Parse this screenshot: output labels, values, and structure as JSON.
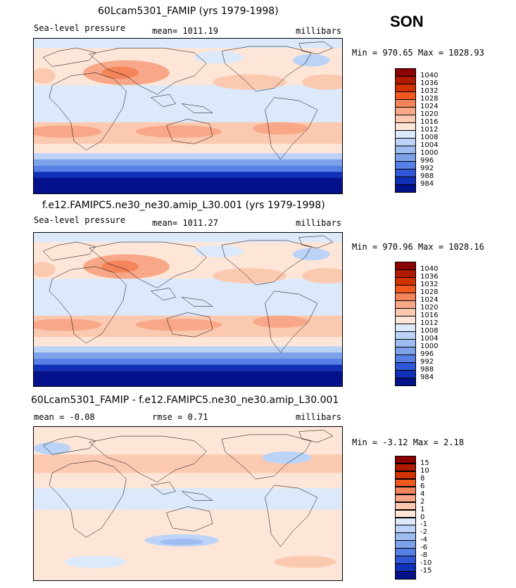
{
  "season": "SON",
  "chart_data": [
    {
      "type": "heatmap",
      "title": "60Lcam5301_FAMIP (yrs 1979-1998)",
      "left_label": "Sea-level pressure",
      "center_label": "mean= 1011.19",
      "right_label": "millibars",
      "stats": "Min = 970.65 Max = 1028.93",
      "min": 970.65,
      "max": 1028.93,
      "mean": 1011.19,
      "levels": [
        "1040",
        "1036",
        "1032",
        "1028",
        "1024",
        "1020",
        "1016",
        "1012",
        "1008",
        "1004",
        "1000",
        "996",
        "992",
        "988",
        "984"
      ],
      "colors": [
        "#8b0000",
        "#b01a00",
        "#d23200",
        "#f05a1e",
        "#f4845a",
        "#f8a888",
        "#fbc9b0",
        "#fde6d8",
        "#dce9fb",
        "#bcd3f7",
        "#9dbcf0",
        "#7da2ea",
        "#5680e6",
        "#2f57d6",
        "#1030b8",
        "#03118a"
      ]
    },
    {
      "type": "heatmap",
      "title": "f.e12.FAMIPC5.ne30_ne30.amip_L30.001 (yrs 1979-1998)",
      "left_label": "Sea-level pressure",
      "center_label": "mean= 1011.27",
      "right_label": "millibars",
      "stats": "Min = 970.96 Max = 1028.16",
      "min": 970.96,
      "max": 1028.16,
      "mean": 1011.27,
      "levels": [
        "1040",
        "1036",
        "1032",
        "1028",
        "1024",
        "1020",
        "1016",
        "1012",
        "1008",
        "1004",
        "1000",
        "996",
        "992",
        "988",
        "984"
      ],
      "colors": [
        "#8b0000",
        "#b01a00",
        "#d23200",
        "#f05a1e",
        "#f4845a",
        "#f8a888",
        "#fbc9b0",
        "#fde6d8",
        "#dce9fb",
        "#bcd3f7",
        "#9dbcf0",
        "#7da2ea",
        "#5680e6",
        "#2f57d6",
        "#1030b8",
        "#03118a"
      ]
    },
    {
      "type": "heatmap",
      "title": "60Lcam5301_FAMIP - f.e12.FAMIPC5.ne30_ne30.amip_L30.001",
      "left_label": "mean =   -0.08",
      "center_label": "rmse =    0.71",
      "right_label": "millibars",
      "stats": "Min =   -3.12 Max =    2.18",
      "min": -3.12,
      "max": 2.18,
      "mean": -0.08,
      "rmse": 0.71,
      "levels": [
        "15",
        "10",
        "8",
        "6",
        "4",
        "2",
        "1",
        "0",
        "-1",
        "-2",
        "-4",
        "-6",
        "-8",
        "-10",
        "-15"
      ],
      "colors": [
        "#8b0000",
        "#b01a00",
        "#d23200",
        "#f05a1e",
        "#f4845a",
        "#f8a888",
        "#fbc9b0",
        "#fde6d8",
        "#dce9fb",
        "#bcd3f7",
        "#9dbcf0",
        "#7da2ea",
        "#5680e6",
        "#2f57d6",
        "#1030b8",
        "#03118a"
      ]
    }
  ]
}
